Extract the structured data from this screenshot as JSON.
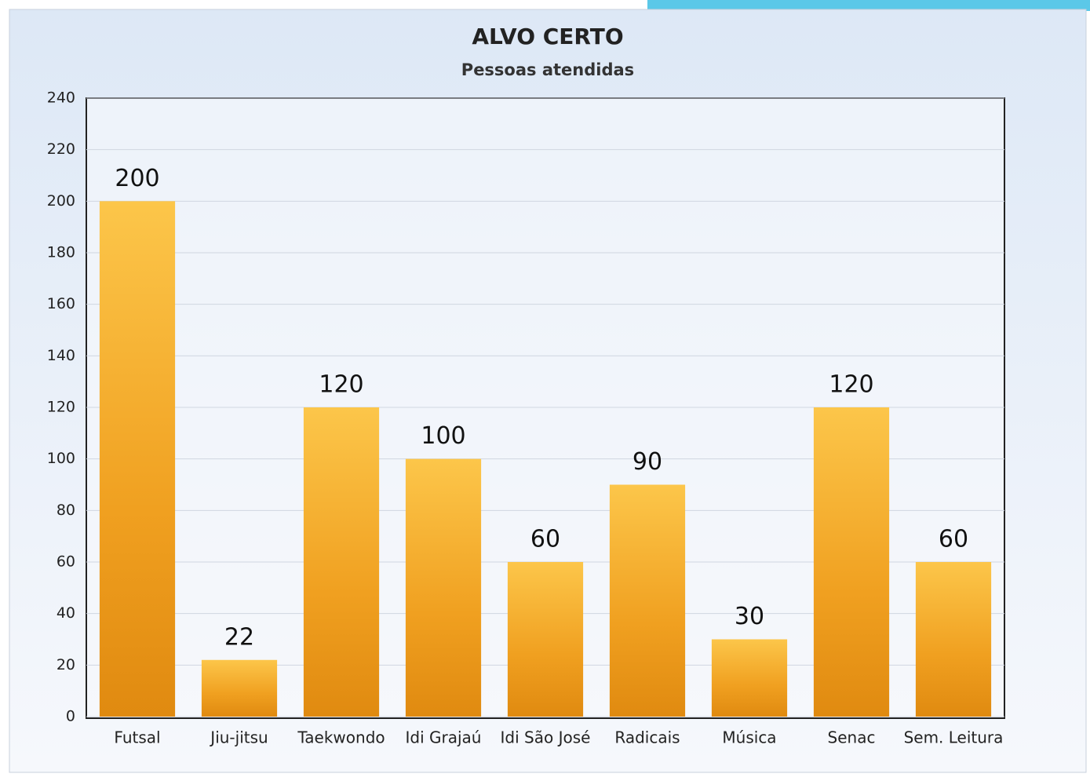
{
  "chart_data": {
    "type": "bar",
    "title": "ALVO CERTO",
    "subtitle": "Pessoas atendidas",
    "categories": [
      "Futsal",
      "Jiu-jitsu",
      "Taekwondo",
      "Idi Grajaú",
      "Idi São José",
      "Radicais",
      "Música",
      "Senac",
      "Sem. Leitura"
    ],
    "values": [
      200,
      22,
      120,
      100,
      60,
      90,
      30,
      120,
      60
    ],
    "color": "#f0a020",
    "ylim": [
      0,
      240
    ],
    "yticks": [
      0,
      20,
      40,
      60,
      80,
      100,
      120,
      140,
      160,
      180,
      200,
      220,
      240
    ],
    "grid": true
  }
}
